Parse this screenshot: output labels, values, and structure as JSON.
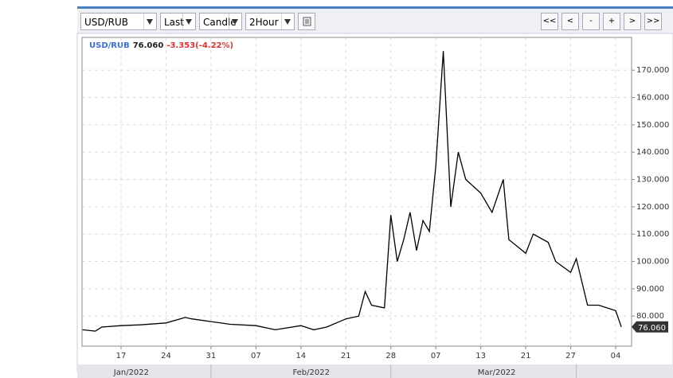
{
  "toolbar": {
    "dropdowns": [
      "USD/RUB",
      "Last",
      "Candle",
      "2Hour"
    ],
    "buttons": [
      "<<",
      "<",
      "-",
      "+",
      ">",
      ">>"
    ]
  },
  "chart_data": {
    "type": "line",
    "legend": {
      "symbol": "USD/RUB",
      "last": "76.060",
      "change": "-3.353(-4.22%)"
    },
    "series": [
      {
        "name": "USD/RUB",
        "color": "#000000",
        "x": [
          "2022-01-11",
          "2022-01-13",
          "2022-01-14",
          "2022-01-17",
          "2022-01-20",
          "2022-01-24",
          "2022-01-27",
          "2022-01-28",
          "2022-01-31",
          "2022-02-03",
          "2022-02-07",
          "2022-02-10",
          "2022-02-14",
          "2022-02-16",
          "2022-02-18",
          "2022-02-21",
          "2022-02-23",
          "2022-02-24",
          "2022-02-25",
          "2022-02-27",
          "2022-02-28",
          "2022-03-01",
          "2022-03-02",
          "2022-03-03",
          "2022-03-04",
          "2022-03-05",
          "2022-03-06",
          "2022-03-07",
          "2022-03-08",
          "2022-03-09",
          "2022-03-10",
          "2022-03-11",
          "2022-03-13",
          "2022-03-15",
          "2022-03-17",
          "2022-03-18",
          "2022-03-21",
          "2022-03-22",
          "2022-03-24",
          "2022-03-25",
          "2022-03-27",
          "2022-03-28",
          "2022-03-30",
          "2022-04-01",
          "2022-04-04",
          "2022-04-05"
        ],
        "values": [
          75.0,
          74.5,
          76.0,
          76.5,
          76.8,
          77.5,
          79.5,
          79.0,
          78.0,
          77.0,
          76.5,
          75.0,
          76.5,
          75.0,
          76.0,
          79.0,
          80.0,
          89.0,
          84.0,
          83.0,
          117.0,
          100.0,
          108.0,
          118.0,
          104.0,
          115.0,
          111.0,
          135.0,
          177.0,
          120.0,
          140.0,
          130.0,
          125.0,
          118.0,
          130.0,
          108.0,
          103.0,
          110.0,
          107.0,
          100.0,
          96.0,
          101.0,
          84.0,
          84.0,
          82.0,
          76.06
        ]
      }
    ],
    "xlim": [
      "2022-01-11",
      "2022-04-06"
    ],
    "xticks": [
      {
        "value": "2022-01-17",
        "label": "17"
      },
      {
        "value": "2022-01-24",
        "label": "24"
      },
      {
        "value": "2022-01-31",
        "label": "31"
      },
      {
        "value": "2022-02-07",
        "label": "07"
      },
      {
        "value": "2022-02-14",
        "label": "14"
      },
      {
        "value": "2022-02-21",
        "label": "21"
      },
      {
        "value": "2022-02-28",
        "label": "28"
      },
      {
        "value": "2022-03-07",
        "label": "07"
      },
      {
        "value": "2022-03-13",
        "label": "13"
      },
      {
        "value": "2022-03-21",
        "label": "21"
      },
      {
        "value": "2022-03-27",
        "label": "27"
      },
      {
        "value": "2022-04-04",
        "label": "04"
      }
    ],
    "months": [
      {
        "value": "2022-01-31",
        "label": "Jan/2022"
      },
      {
        "value": "2022-02-28",
        "label": "Feb/2022"
      },
      {
        "value": "2022-03-28",
        "label": "Mar/2022"
      }
    ],
    "ylim": [
      69,
      182
    ],
    "yticks": [
      {
        "value": 80,
        "label": "80.000"
      },
      {
        "value": 90,
        "label": "90.000"
      },
      {
        "value": 100,
        "label": "100.000"
      },
      {
        "value": 110,
        "label": "110.000"
      },
      {
        "value": 120,
        "label": "120.000"
      },
      {
        "value": 130,
        "label": "130.000"
      },
      {
        "value": 140,
        "label": "140.000"
      },
      {
        "value": 150,
        "label": "150.000"
      },
      {
        "value": 160,
        "label": "160.000"
      },
      {
        "value": 170,
        "label": "170.000"
      }
    ],
    "grid": true
  }
}
